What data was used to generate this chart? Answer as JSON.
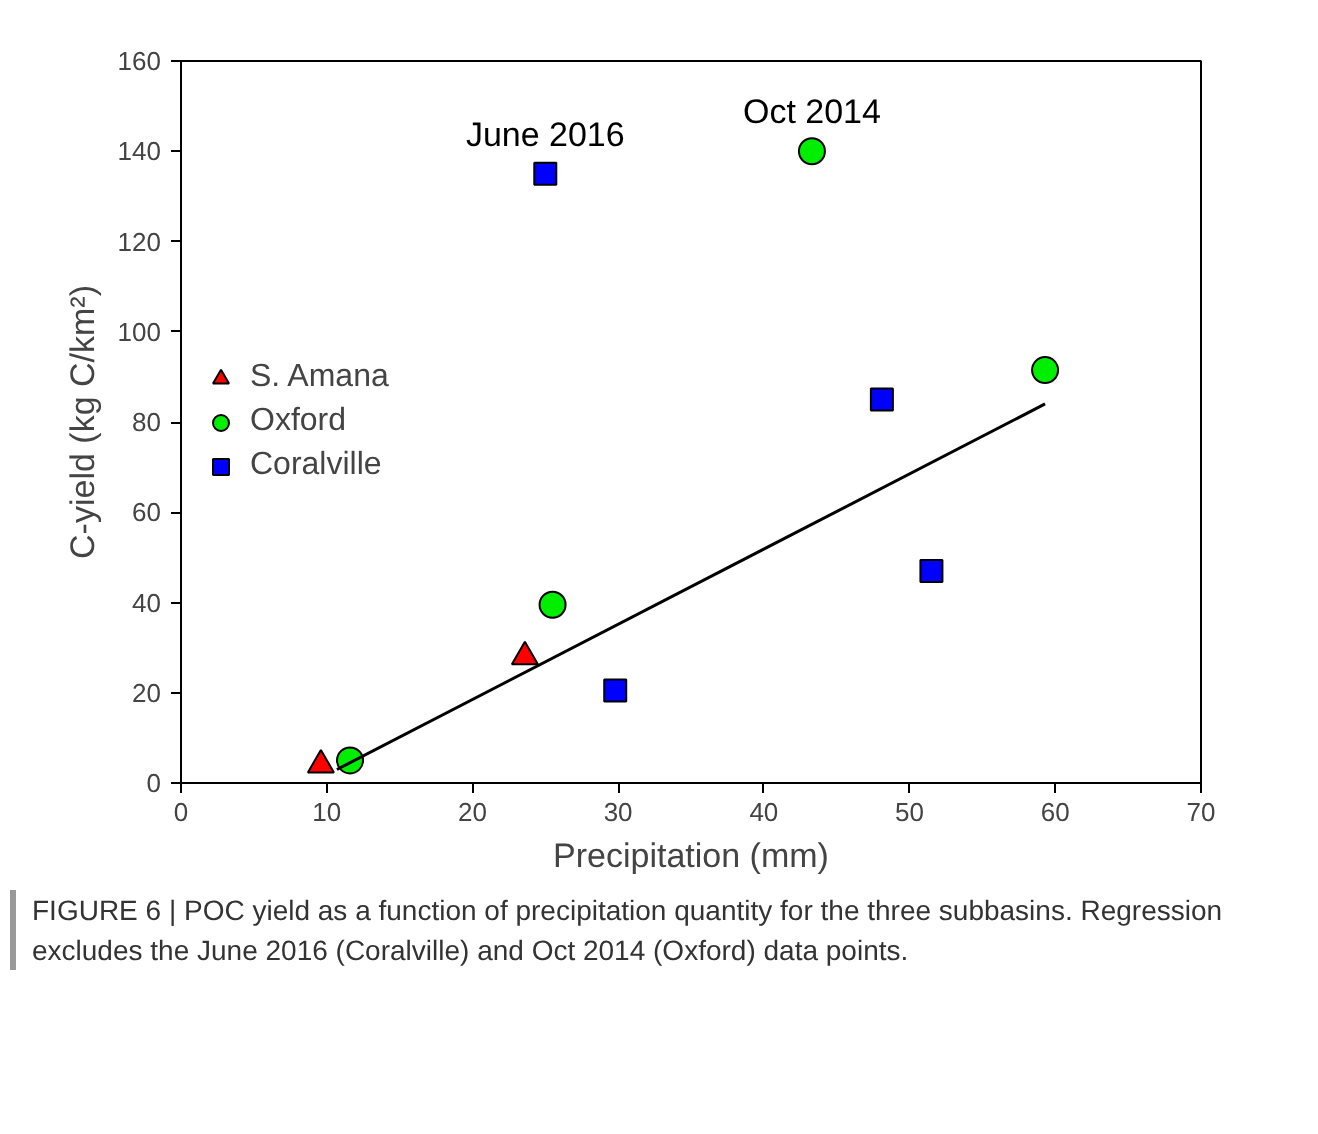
{
  "chart_data": {
    "type": "scatter",
    "xlabel": "Precipitation (mm)",
    "ylabel": "C-yield (kg C/km²)",
    "xlim": [
      0,
      70
    ],
    "ylim": [
      0,
      160
    ],
    "xticks": [
      0,
      10,
      20,
      30,
      40,
      50,
      60,
      70
    ],
    "yticks": [
      0,
      20,
      40,
      60,
      80,
      100,
      120,
      140,
      160
    ],
    "grid": false,
    "legend": "left",
    "series": [
      {
        "name": "S. Amana",
        "color": "#ff0000",
        "marker": "triangle",
        "x": [
          9.6,
          23.6
        ],
        "values": [
          4,
          28
        ]
      },
      {
        "name": "Oxford",
        "color": "#00ee00",
        "marker": "circle",
        "x": [
          11.6,
          25.5,
          43.3,
          59.3
        ],
        "values": [
          5,
          39.5,
          140,
          91.5
        ]
      },
      {
        "name": "Coralville",
        "color": "#0000ff",
        "marker": "square",
        "x": [
          25,
          29.8,
          48.1,
          51.5
        ],
        "values": [
          135,
          20.5,
          85,
          47
        ]
      },
      {
        "type": "line",
        "color": "#000000",
        "marker": "none",
        "x": [
          10.7,
          59.3
        ],
        "values": [
          3,
          84
        ]
      }
    ],
    "annotations": [
      {
        "text": "June 2016",
        "x": 25,
        "y": 135
      },
      {
        "text": "Oct 2014",
        "x": 43.3,
        "y": 140
      },
      "FIGURE 6 | POC yield as a function of precipitation quantity for the three subbasins. Regression excludes the June 2016 (Coralville) and Oct 2014 (Oxford) data points."
    ]
  }
}
